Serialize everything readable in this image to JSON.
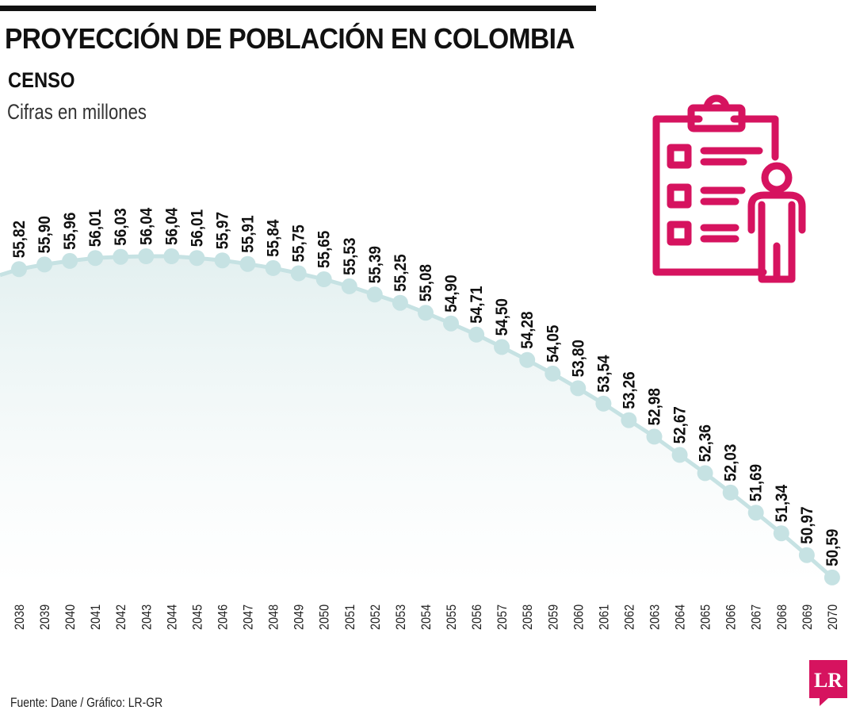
{
  "header": {
    "title": "PROYECCIÓN DE POBLACIÓN EN COLOMBIA",
    "subtitle": "CENSO",
    "units": "Cifras en millones"
  },
  "footer": {
    "source": "Fuente: Dane / Gráfico: LR-GR",
    "logo_text": "LR"
  },
  "colors": {
    "accent": "#d6135f",
    "line": "#c6e2e3",
    "area_top": "#e3f0f0",
    "text": "#111111"
  },
  "icon": "clipboard-person-icon",
  "chart_data": {
    "type": "area",
    "x": [
      2038,
      2039,
      2040,
      2041,
      2042,
      2043,
      2044,
      2045,
      2046,
      2047,
      2048,
      2049,
      2050,
      2051,
      2052,
      2053,
      2054,
      2055,
      2056,
      2057,
      2058,
      2059,
      2060,
      2061,
      2062,
      2063,
      2064,
      2065,
      2066,
      2067,
      2068,
      2069,
      2070
    ],
    "values": [
      55.82,
      55.9,
      55.96,
      56.01,
      56.03,
      56.04,
      56.04,
      56.01,
      55.97,
      55.91,
      55.84,
      55.75,
      55.65,
      55.53,
      55.39,
      55.25,
      55.08,
      54.9,
      54.71,
      54.5,
      54.28,
      54.05,
      53.8,
      53.54,
      53.26,
      52.98,
      52.67,
      52.36,
      52.03,
      51.69,
      51.34,
      50.97,
      50.59
    ],
    "value_labels": [
      "55,82",
      "55,90",
      "55,96",
      "56,01",
      "56,03",
      "56,04",
      "56,04",
      "56,01",
      "55,97",
      "55,91",
      "55,84",
      "55,75",
      "55,65",
      "55,53",
      "55,39",
      "55,25",
      "55,08",
      "54,90",
      "54,71",
      "54,50",
      "54,28",
      "54,05",
      "53,80",
      "53,54",
      "53,26",
      "52,98",
      "52,67",
      "52,36",
      "52,03",
      "51,69",
      "51,34",
      "50,97",
      "50,59"
    ],
    "xlabel": "",
    "ylabel": "",
    "grid": false,
    "legend": "none"
  }
}
